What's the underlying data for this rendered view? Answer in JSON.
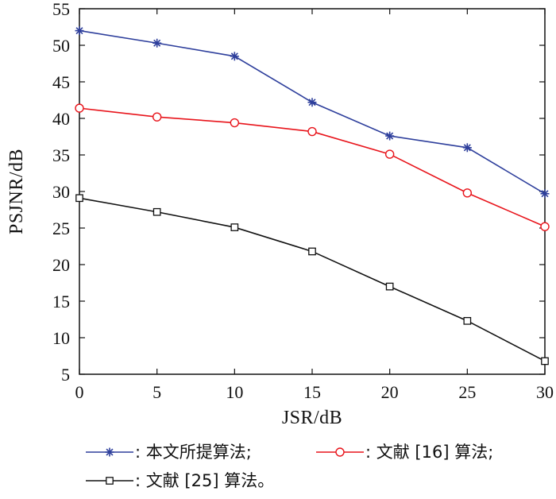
{
  "chart_data": {
    "type": "line",
    "xlabel": "JSR/dB",
    "ylabel": "PSJNR/dB",
    "x": [
      0,
      5,
      10,
      15,
      20,
      25,
      30
    ],
    "xlim": [
      0,
      30
    ],
    "ylim": [
      5,
      55
    ],
    "xticks": [
      "0",
      "5",
      "10",
      "15",
      "20",
      "25",
      "30"
    ],
    "yticks": [
      "5",
      "10",
      "15",
      "20",
      "25",
      "30",
      "35",
      "40",
      "45",
      "50",
      "55"
    ],
    "grid": false,
    "legend_position": "bottom",
    "series": [
      {
        "name": ": 本文所提算法;",
        "marker": "star",
        "color": "#2e3f9c",
        "values": [
          52.0,
          50.3,
          48.5,
          42.2,
          37.6,
          36.0,
          29.7
        ]
      },
      {
        "name": ": 文献 [16] 算法;",
        "marker": "circle",
        "color": "#e8141b",
        "values": [
          41.4,
          40.2,
          39.4,
          38.2,
          35.1,
          29.8,
          25.2
        ]
      },
      {
        "name": ": 文献 [25] 算法。",
        "marker": "square",
        "color": "#111111",
        "values": [
          29.1,
          27.2,
          25.1,
          21.8,
          17.0,
          12.3,
          6.8
        ]
      }
    ]
  }
}
